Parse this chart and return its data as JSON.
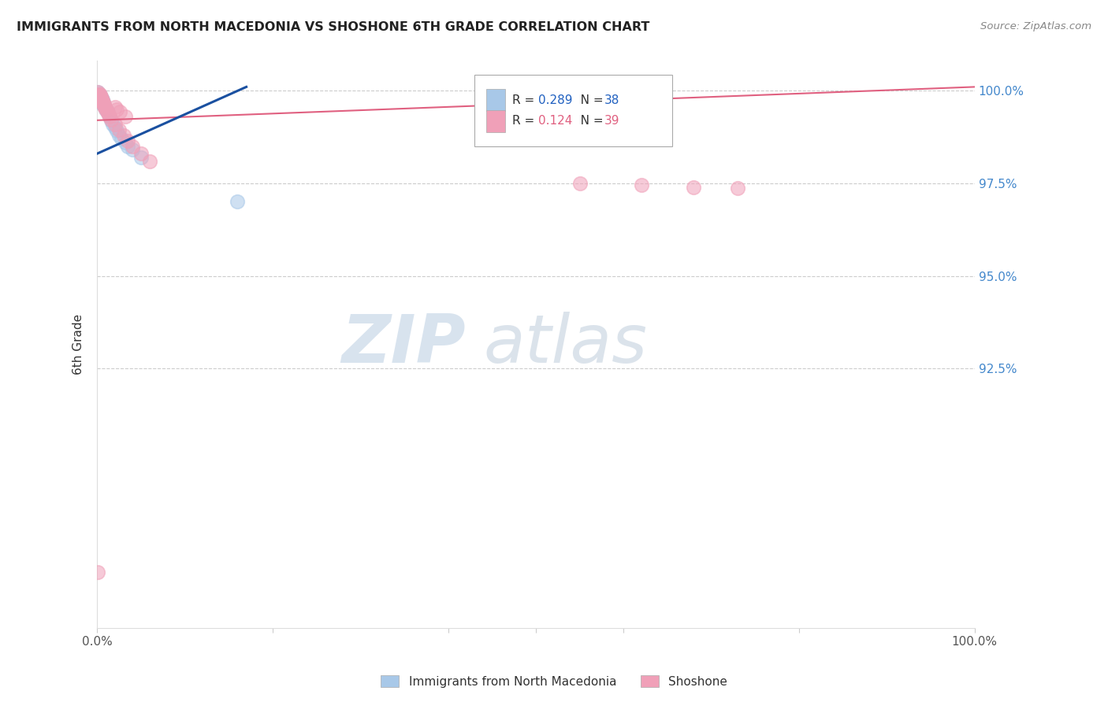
{
  "title": "IMMIGRANTS FROM NORTH MACEDONIA VS SHOSHONE 6TH GRADE CORRELATION CHART",
  "source": "Source: ZipAtlas.com",
  "ylabel": "6th Grade",
  "ytick_labels": [
    "92.5%",
    "95.0%",
    "97.5%",
    "100.0%"
  ],
  "ytick_values": [
    0.925,
    0.95,
    0.975,
    1.0
  ],
  "blue_R": "0.289",
  "blue_N": "38",
  "pink_R": "0.124",
  "pink_N": "39",
  "blue_color": "#a8c8e8",
  "pink_color": "#f0a0b8",
  "blue_line_color": "#1a50a0",
  "pink_line_color": "#e06080",
  "legend_blue_label": "Immigrants from North Macedonia",
  "legend_pink_label": "Shoshone",
  "watermark_zip": "ZIP",
  "watermark_atlas": "atlas",
  "xlim": [
    0.0,
    1.0
  ],
  "ylim": [
    0.855,
    1.008
  ],
  "blue_x": [
    0.001,
    0.001,
    0.001,
    0.002,
    0.002,
    0.002,
    0.003,
    0.003,
    0.003,
    0.003,
    0.004,
    0.004,
    0.004,
    0.005,
    0.005,
    0.005,
    0.006,
    0.006,
    0.006,
    0.007,
    0.007,
    0.008,
    0.009,
    0.01,
    0.011,
    0.012,
    0.014,
    0.016,
    0.018,
    0.02,
    0.022,
    0.025,
    0.028,
    0.032,
    0.035,
    0.04,
    0.05,
    0.16
  ],
  "blue_y": [
    0.9995,
    0.999,
    0.9985,
    0.999,
    0.9988,
    0.9982,
    0.9988,
    0.9985,
    0.998,
    0.9978,
    0.9982,
    0.9978,
    0.9974,
    0.998,
    0.9976,
    0.997,
    0.9975,
    0.997,
    0.9965,
    0.9968,
    0.9962,
    0.996,
    0.9955,
    0.995,
    0.9945,
    0.994,
    0.993,
    0.992,
    0.991,
    0.99,
    0.9892,
    0.988,
    0.987,
    0.986,
    0.985,
    0.984,
    0.982,
    0.97
  ],
  "pink_x": [
    0.001,
    0.001,
    0.002,
    0.002,
    0.003,
    0.003,
    0.003,
    0.004,
    0.004,
    0.005,
    0.005,
    0.006,
    0.006,
    0.007,
    0.007,
    0.008,
    0.008,
    0.009,
    0.01,
    0.011,
    0.012,
    0.014,
    0.016,
    0.02,
    0.025,
    0.03,
    0.035,
    0.04,
    0.05,
    0.06,
    0.55,
    0.62,
    0.68,
    0.73,
    0.02,
    0.022,
    0.026,
    0.032,
    0.001
  ],
  "pink_y": [
    0.9995,
    0.999,
    0.999,
    0.9985,
    0.999,
    0.9985,
    0.998,
    0.9982,
    0.9978,
    0.9978,
    0.9974,
    0.9972,
    0.9968,
    0.9968,
    0.9964,
    0.9962,
    0.9958,
    0.9955,
    0.995,
    0.9944,
    0.9938,
    0.993,
    0.9922,
    0.991,
    0.9895,
    0.988,
    0.9865,
    0.985,
    0.983,
    0.981,
    0.975,
    0.9745,
    0.974,
    0.9738,
    0.9955,
    0.995,
    0.9942,
    0.993,
    0.87
  ],
  "blue_trendline_x": [
    0.0,
    0.17
  ],
  "blue_trendline_y": [
    0.983,
    1.001
  ],
  "pink_trendline_x": [
    0.0,
    1.0
  ],
  "pink_trendline_y": [
    0.992,
    1.001
  ]
}
